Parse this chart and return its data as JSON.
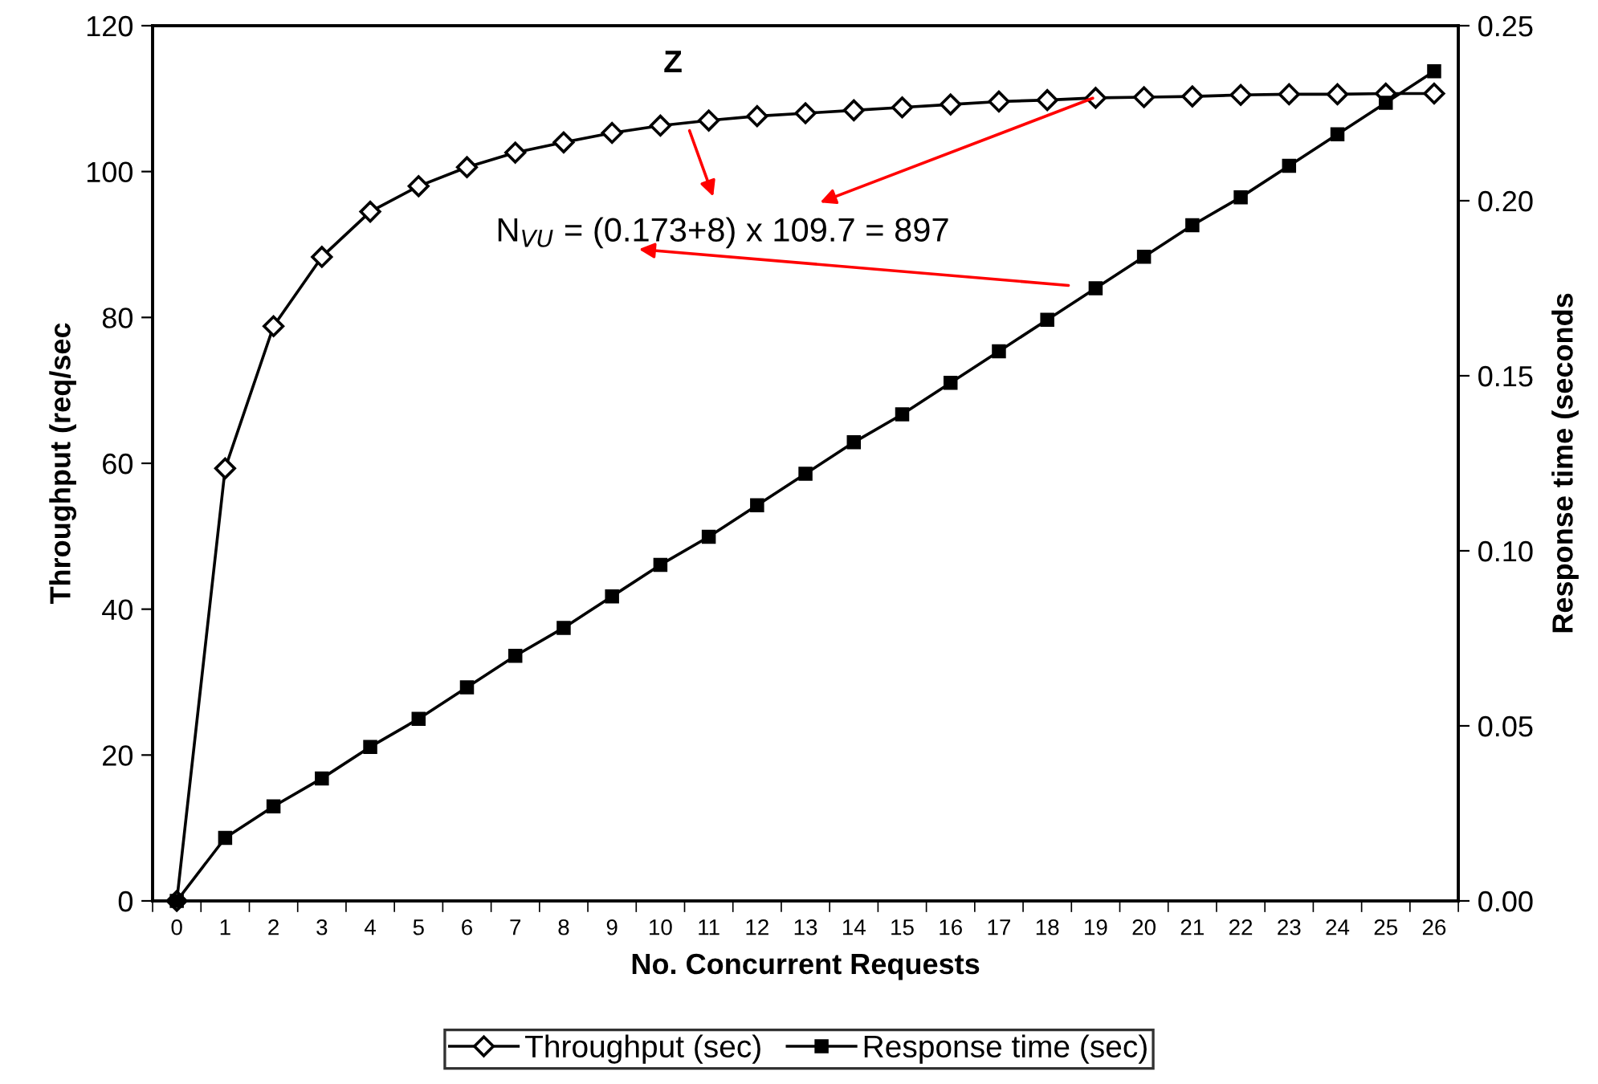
{
  "chart_data": {
    "type": "line",
    "xlabel": "No. Concurrent Requests",
    "ylabel": "Throughput (req/sec",
    "y2label": "Response time (seconds",
    "categories": [
      "0",
      "1",
      "2",
      "3",
      "4",
      "5",
      "6",
      "7",
      "8",
      "9",
      "10",
      "11",
      "12",
      "13",
      "14",
      "15",
      "16",
      "17",
      "18",
      "19",
      "20",
      "21",
      "22",
      "23",
      "24",
      "25",
      "26"
    ],
    "series": [
      {
        "name": "Throughput (sec)",
        "color": "#000000",
        "marker": "diamond",
        "values": [
          0,
          59.3,
          78.8,
          88.3,
          94.5,
          98,
          100.6,
          102.6,
          104,
          105.3,
          106.3,
          107,
          107.6,
          108,
          108.4,
          108.8,
          109.2,
          109.6,
          109.8,
          110.1,
          110.2,
          110.3,
          110.5,
          110.6,
          110.6,
          110.7,
          110.7
        ]
      },
      {
        "name": "Response time (sec)",
        "color": "#000000",
        "marker": "square",
        "axis": "y2",
        "values": [
          0,
          0.018,
          0.027,
          0.035,
          0.044,
          0.052,
          0.061,
          0.07,
          0.078,
          0.087,
          0.096,
          0.104,
          0.113,
          0.122,
          0.131,
          0.139,
          0.148,
          0.157,
          0.166,
          0.175,
          0.184,
          0.193,
          0.201,
          0.21,
          0.219,
          0.228,
          0.237
        ]
      }
    ],
    "ylim": [
      0,
      120
    ],
    "yticks": [
      0,
      20,
      40,
      60,
      80,
      100,
      120
    ],
    "y2lim": [
      0,
      0.25
    ],
    "y2ticks": [
      {
        "value": 0,
        "label": "0.00"
      },
      {
        "value": 0.05,
        "label": "0.05"
      },
      {
        "value": 0.1,
        "label": "0.10"
      },
      {
        "value": 0.15,
        "label": "0.15"
      },
      {
        "value": 0.2,
        "label": "0.20"
      },
      {
        "value": 0.25,
        "label": "0.25"
      }
    ],
    "annotations": [
      "Z",
      "N$_{VU}$ = (0.173+8) x 109.7 = 897"
    ],
    "grid": false,
    "legend": "bottom",
    "line_style": "solid"
  }
}
